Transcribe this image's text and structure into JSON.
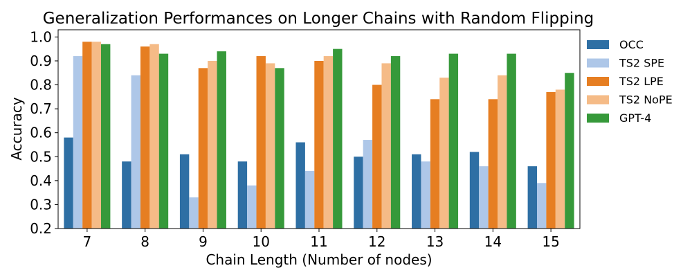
{
  "chart_data": {
    "type": "bar",
    "title": "Generalization Performances on Longer Chains with Random Flipping",
    "xlabel": "Chain Length (Number of nodes)",
    "ylabel": "Accuracy",
    "ylim": [
      0.2,
      1.03
    ],
    "yticks": [
      "0.2",
      "0.3",
      "0.4",
      "0.5",
      "0.6",
      "0.7",
      "0.8",
      "0.9",
      "1.0"
    ],
    "categories": [
      "7",
      "8",
      "9",
      "10",
      "11",
      "12",
      "13",
      "14",
      "15"
    ],
    "grid": false,
    "legend_position": "right, outside plot",
    "series": [
      {
        "name": "OCC",
        "color": "#2e6fa4",
        "values": [
          0.58,
          0.48,
          0.51,
          0.48,
          0.56,
          0.5,
          0.51,
          0.52,
          0.46
        ]
      },
      {
        "name": "TS2 SPE",
        "color": "#aec7e8",
        "values": [
          0.92,
          0.84,
          0.33,
          0.38,
          0.44,
          0.57,
          0.48,
          0.46,
          0.39
        ]
      },
      {
        "name": "TS2 LPE",
        "color": "#e67e22",
        "values": [
          0.98,
          0.96,
          0.87,
          0.92,
          0.9,
          0.8,
          0.74,
          0.74,
          0.77
        ]
      },
      {
        "name": "TS2 NoPE",
        "color": "#f5bb87",
        "values": [
          0.98,
          0.97,
          0.9,
          0.89,
          0.92,
          0.89,
          0.83,
          0.84,
          0.78
        ]
      },
      {
        "name": "GPT-4",
        "color": "#36993a",
        "values": [
          0.97,
          0.93,
          0.94,
          0.87,
          0.95,
          0.92,
          0.93,
          0.93,
          0.85
        ]
      }
    ]
  }
}
